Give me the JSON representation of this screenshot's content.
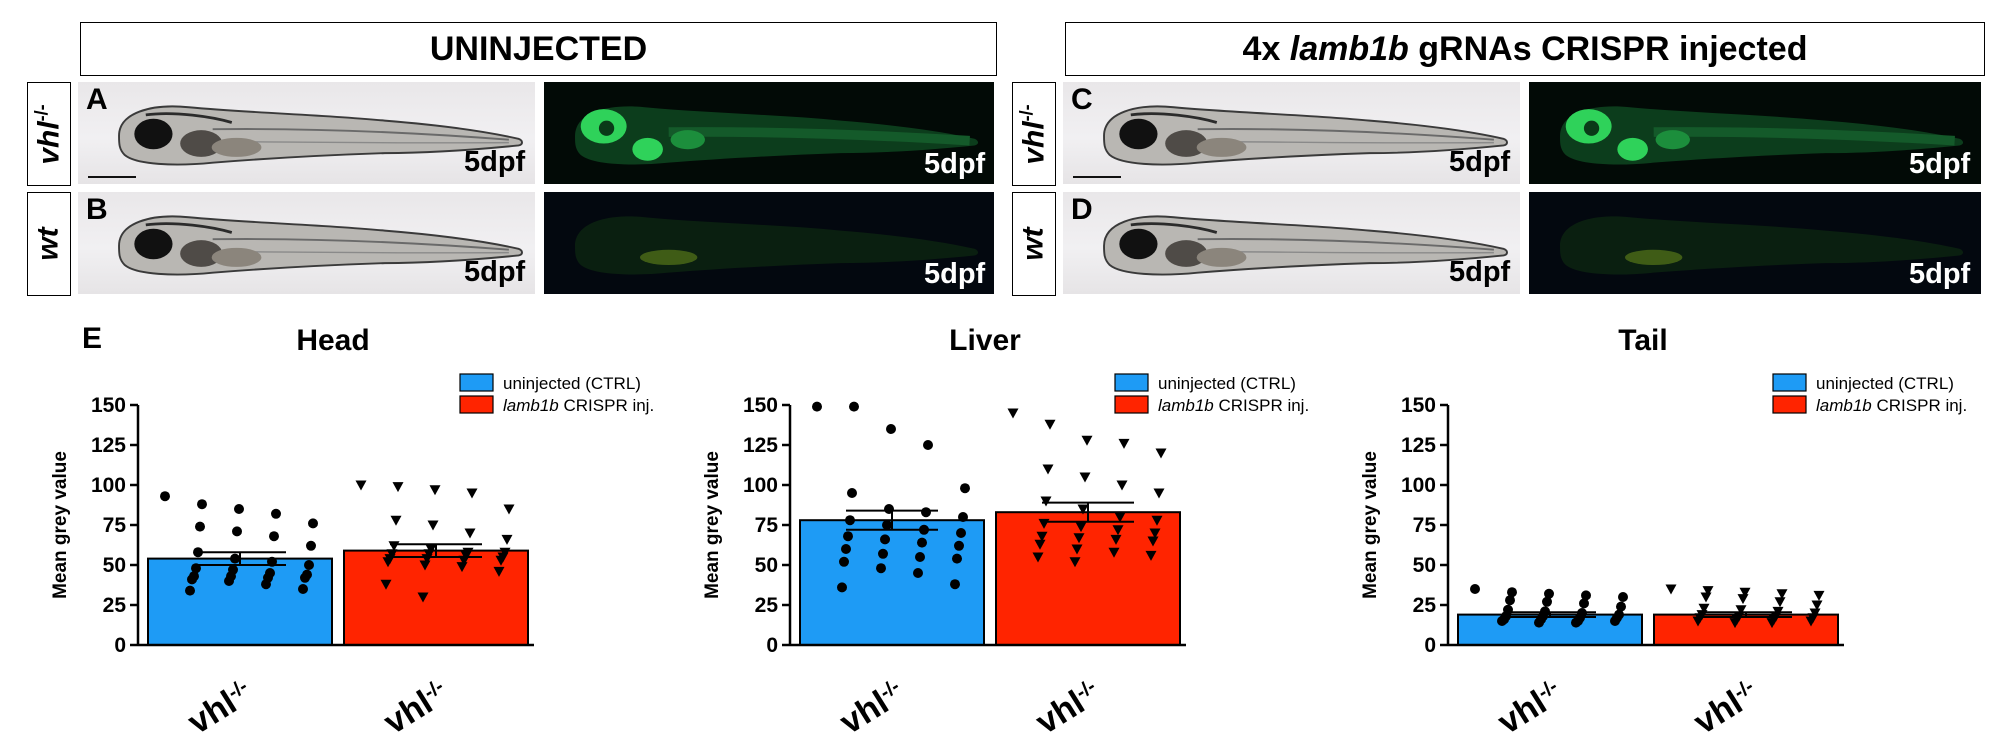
{
  "headers": {
    "left": "UNINJECTED",
    "right_prefix": "4x ",
    "right_gene": "lamb1b",
    "right_suffix": " gRNAs CRISPR injected"
  },
  "rows": [
    {
      "genotype": "vhl",
      "superscript": "-/-"
    },
    {
      "genotype": "wt",
      "superscript": ""
    }
  ],
  "panel_letters": {
    "a": "A",
    "b": "B",
    "c": "C",
    "d": "D",
    "e": "E"
  },
  "stage_label": "5dpf",
  "colors": {
    "uninjected": "#1E9BF5",
    "crispr": "#FF2400",
    "fluorescence": "#2fd25a"
  },
  "chart_data": [
    {
      "type": "bar",
      "title": "Head",
      "ylabel": "Mean grey value",
      "ylim": [
        0,
        150
      ],
      "yticks": [
        0,
        25,
        50,
        75,
        100,
        125,
        150
      ],
      "categories": [
        "vhl-/-",
        "vhl-/-"
      ],
      "legend_position": "top-right",
      "series": [
        {
          "name": "uninjected (CTRL)",
          "mean": 54,
          "sem": 4,
          "marker": "circle",
          "points": [
            93,
            88,
            85,
            82,
            76,
            74,
            71,
            68,
            62,
            58,
            54,
            52,
            50,
            48,
            47,
            45,
            44,
            43,
            43,
            42,
            42,
            41,
            40,
            38,
            35,
            34
          ]
        },
        {
          "name": "lamb1b CRISPR inj.",
          "mean": 59,
          "sem": 4,
          "marker": "triangle",
          "points": [
            100,
            99,
            97,
            95,
            85,
            78,
            75,
            70,
            66,
            62,
            60,
            58,
            58,
            57,
            57,
            56,
            55,
            54,
            54,
            53,
            53,
            52,
            50,
            49,
            46,
            38,
            30
          ]
        }
      ]
    },
    {
      "type": "bar",
      "title": "Liver",
      "ylabel": "Mean grey value",
      "ylim": [
        0,
        150
      ],
      "yticks": [
        0,
        25,
        50,
        75,
        100,
        125,
        150
      ],
      "categories": [
        "vhl-/-",
        "vhl-/-"
      ],
      "legend_position": "top-right",
      "series": [
        {
          "name": "uninjected (CTRL)",
          "mean": 78,
          "sem": 6,
          "marker": "circle",
          "points": [
            149,
            149,
            135,
            125,
            98,
            95,
            85,
            83,
            80,
            78,
            75,
            72,
            70,
            68,
            66,
            64,
            62,
            60,
            57,
            55,
            54,
            52,
            48,
            45,
            38,
            36
          ]
        },
        {
          "name": "lamb1b CRISPR inj.",
          "mean": 83,
          "sem": 6,
          "marker": "triangle",
          "points": [
            145,
            138,
            128,
            126,
            120,
            110,
            105,
            100,
            95,
            90,
            85,
            80,
            78,
            76,
            74,
            72,
            70,
            68,
            67,
            66,
            65,
            63,
            60,
            58,
            56,
            55,
            52
          ]
        }
      ]
    },
    {
      "type": "bar",
      "title": "Tail",
      "ylabel": "Mean grey value",
      "ylim": [
        0,
        150
      ],
      "yticks": [
        0,
        25,
        50,
        75,
        100,
        125,
        150
      ],
      "categories": [
        "vhl-/-",
        "vhl-/-"
      ],
      "legend_position": "top-right",
      "series": [
        {
          "name": "uninjected (CTRL)",
          "mean": 19,
          "sem": 1.5,
          "marker": "circle",
          "points": [
            35,
            33,
            32,
            31,
            30,
            28,
            27,
            26,
            24,
            22,
            21,
            20,
            19,
            18,
            18,
            17,
            17,
            16,
            16,
            15,
            15,
            15,
            14,
            14
          ]
        },
        {
          "name": "lamb1b CRISPR inj.",
          "mean": 19,
          "sem": 1.5,
          "marker": "triangle",
          "points": [
            35,
            34,
            33,
            32,
            31,
            30,
            29,
            27,
            25,
            23,
            22,
            21,
            20,
            19,
            18,
            18,
            17,
            17,
            16,
            16,
            15,
            15,
            14,
            14
          ]
        }
      ]
    }
  ]
}
